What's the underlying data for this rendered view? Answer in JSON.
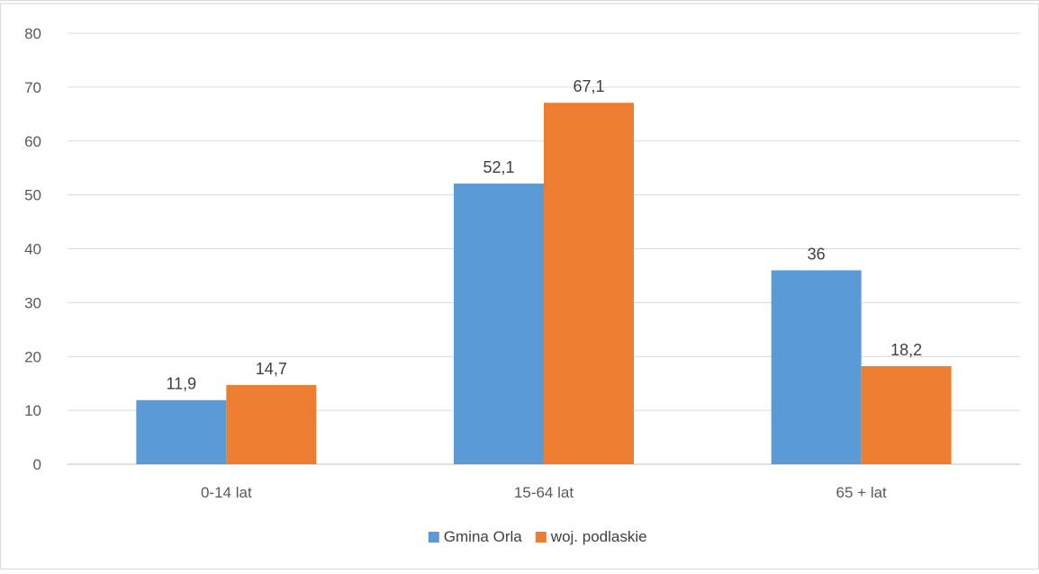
{
  "chart_data": {
    "type": "bar",
    "categories": [
      "0-14 lat",
      "15-64 lat",
      "65 + lat"
    ],
    "series": [
      {
        "name": "Gmina Orla",
        "color": "#5B9BD5",
        "values": [
          11.9,
          52.1,
          36
        ],
        "labels": [
          "11,9",
          "52,1",
          "36"
        ]
      },
      {
        "name": "woj. podlaskie",
        "color": "#ED7D31",
        "values": [
          14.7,
          67.1,
          18.2
        ],
        "labels": [
          "14,7",
          "67,1",
          "18,2"
        ]
      }
    ],
    "yticks": [
      0,
      10,
      20,
      30,
      40,
      50,
      60,
      70,
      80
    ],
    "ylim": [
      0,
      80
    ],
    "grid": true,
    "legend_position": "bottom"
  }
}
